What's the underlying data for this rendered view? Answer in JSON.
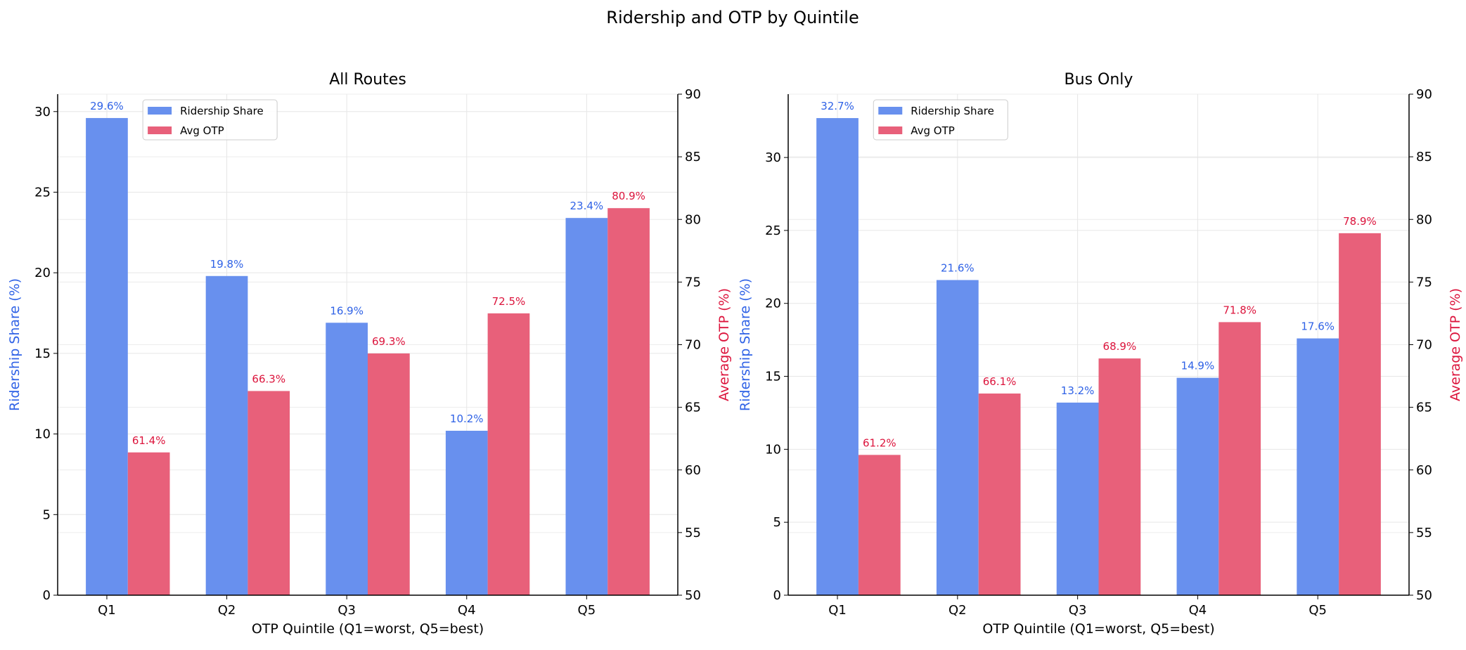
{
  "title": "Ridership and OTP by Quintile",
  "colors": {
    "ridership_bar": "#6890EE",
    "otp_bar": "#E8607A",
    "ridership_text": "#2F62E6",
    "otp_text": "#DC143C"
  },
  "chart_data": [
    {
      "type": "bar",
      "title": "All Routes",
      "xlabel": "OTP Quintile (Q1=worst, Q5=best)",
      "ylabel": "Ridership Share (%)",
      "y2label": "Average OTP (%)",
      "categories": [
        "Q1",
        "Q2",
        "Q3",
        "Q4",
        "Q5"
      ],
      "ylim": [
        0,
        31.08
      ],
      "yticks": [
        0,
        5,
        10,
        15,
        20,
        25,
        30
      ],
      "y2lim": [
        50,
        90
      ],
      "y2ticks": [
        50,
        55,
        60,
        65,
        70,
        75,
        80,
        85,
        90
      ],
      "grid": true,
      "legend_placement": "top-left",
      "series": [
        {
          "name": "Ridership Share",
          "axis": "left",
          "values": [
            29.6,
            19.8,
            16.9,
            10.2,
            23.4
          ],
          "labels": [
            "29.6%",
            "19.8%",
            "16.9%",
            "10.2%",
            "23.4%"
          ]
        },
        {
          "name": "Avg OTP",
          "axis": "right",
          "values": [
            61.4,
            66.3,
            69.3,
            72.5,
            80.9
          ],
          "labels": [
            "61.4%",
            "66.3%",
            "69.3%",
            "72.5%",
            "80.9%"
          ]
        }
      ]
    },
    {
      "type": "bar",
      "title": "Bus Only",
      "xlabel": "OTP Quintile (Q1=worst, Q5=best)",
      "ylabel": "Ridership Share (%)",
      "y2label": "Average OTP (%)",
      "categories": [
        "Q1",
        "Q2",
        "Q3",
        "Q4",
        "Q5"
      ],
      "ylim": [
        0,
        34.34
      ],
      "yticks": [
        0,
        5,
        10,
        15,
        20,
        25,
        30
      ],
      "y2lim": [
        50,
        90
      ],
      "y2ticks": [
        50,
        55,
        60,
        65,
        70,
        75,
        80,
        85,
        90
      ],
      "grid": true,
      "legend_placement": "top-left",
      "series": [
        {
          "name": "Ridership Share",
          "axis": "left",
          "values": [
            32.7,
            21.6,
            13.2,
            14.9,
            17.6
          ],
          "labels": [
            "32.7%",
            "21.6%",
            "13.2%",
            "14.9%",
            "17.6%"
          ]
        },
        {
          "name": "Avg OTP",
          "axis": "right",
          "values": [
            61.2,
            66.1,
            68.9,
            71.8,
            78.9
          ],
          "labels": [
            "61.2%",
            "66.1%",
            "68.9%",
            "71.8%",
            "78.9%"
          ]
        }
      ]
    }
  ]
}
